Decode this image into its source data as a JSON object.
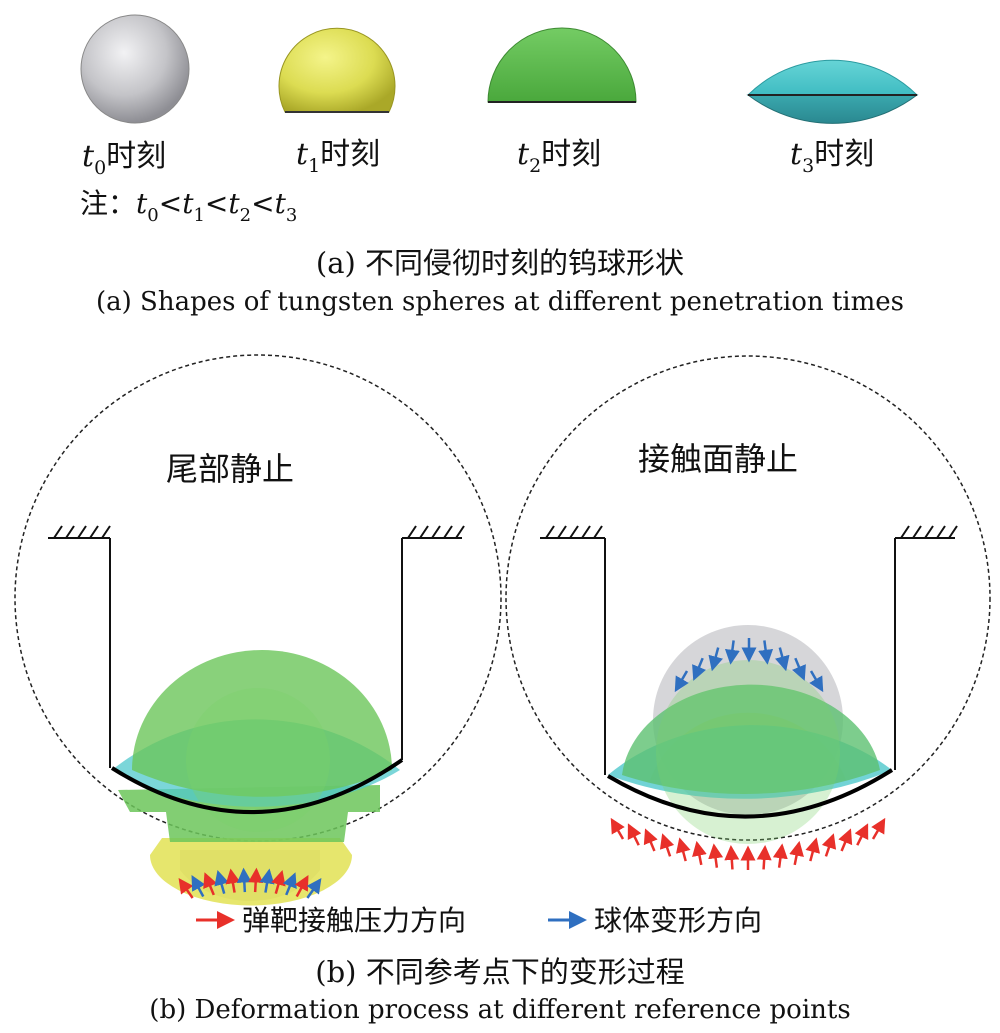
{
  "panel_a": {
    "spheres": [
      {
        "var": "t",
        "sub": "0",
        "suffix": "时刻",
        "color": "#c8c8cc",
        "shape": "full sphere"
      },
      {
        "var": "t",
        "sub": "1",
        "suffix": "时刻",
        "color": "#dede5a",
        "shape": "flattened sphere"
      },
      {
        "var": "t",
        "sub": "2",
        "suffix": "时刻",
        "color": "#6cc65a",
        "shape": "hemisphere"
      },
      {
        "var": "t",
        "sub": "3",
        "suffix": "时刻",
        "color": "#4fc8cc",
        "shape": "lens"
      }
    ],
    "note": {
      "prefix": "注：",
      "t": "t",
      "lt": "<",
      "subs": [
        "0",
        "1",
        "2",
        "3"
      ]
    },
    "caption_cn": "(a) 不同侵彻时刻的钨球形状",
    "caption_en": "(a) Shapes of tungsten spheres at different penetration times"
  },
  "panel_b": {
    "left_title": "尾部静止",
    "right_title": "接触面静止",
    "legend": [
      {
        "label": "弹靶接触压力方向",
        "color": "#e8302a"
      },
      {
        "label": "球体变形方向",
        "color": "#2f6fc0"
      }
    ],
    "caption_cn": "(b) 不同参考点下的变形过程",
    "caption_en": "(b) Deformation process at  different reference points"
  }
}
